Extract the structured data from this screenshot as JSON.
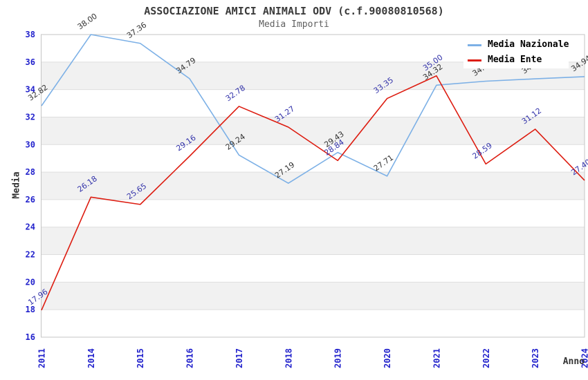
{
  "chart_data": {
    "type": "line",
    "title": "ASSOCIAZIONE AMICI ANIMALI ODV (c.f.90080810568)",
    "subtitle": "Media Importi",
    "xlabel": "Anno",
    "ylabel": "Media",
    "categories": [
      "2011",
      "2014",
      "2015",
      "2016",
      "2017",
      "2018",
      "2019",
      "2020",
      "2021",
      "2022",
      "2023",
      "2024"
    ],
    "ylim": [
      16,
      38
    ],
    "ytick_step": 2,
    "grid": "horizontal-gridlines-with-alternating-bands",
    "legend_position": "top-right",
    "colors": {
      "axis_tick_text": "#2222cc",
      "plot_border": "#c5c5c5",
      "gridline": "#dedede",
      "band_fill": "#f1f1f1",
      "title_text": "#3a3a3a",
      "subtitle_text": "#606060"
    },
    "series": [
      {
        "name": "Media Nazionale",
        "color": "#7cb0e6",
        "label_color": "#333333",
        "values": [
          32.82,
          38.0,
          37.36,
          34.79,
          29.24,
          27.19,
          29.43,
          27.71,
          34.32,
          34.61,
          34.78,
          34.94
        ],
        "point_labels": [
          "32.82",
          "38.00",
          "37.36",
          "34.79",
          "29.24",
          "27.19",
          "29.43",
          "27.71",
          "34.32",
          "34.61",
          "34.78",
          "34.94"
        ]
      },
      {
        "name": "Media Ente",
        "color": "#dd1c10",
        "label_color": "#3333aa",
        "values": [
          17.96,
          26.18,
          25.65,
          29.16,
          32.78,
          31.27,
          28.84,
          33.35,
          35.0,
          28.59,
          31.12,
          27.4
        ],
        "point_labels": [
          "17.96",
          "26.18",
          "25.65",
          "29.16",
          "32.78",
          "31.27",
          "28.84",
          "33.35",
          "35.00",
          "28.59",
          "31.12",
          "27.40"
        ]
      }
    ]
  }
}
